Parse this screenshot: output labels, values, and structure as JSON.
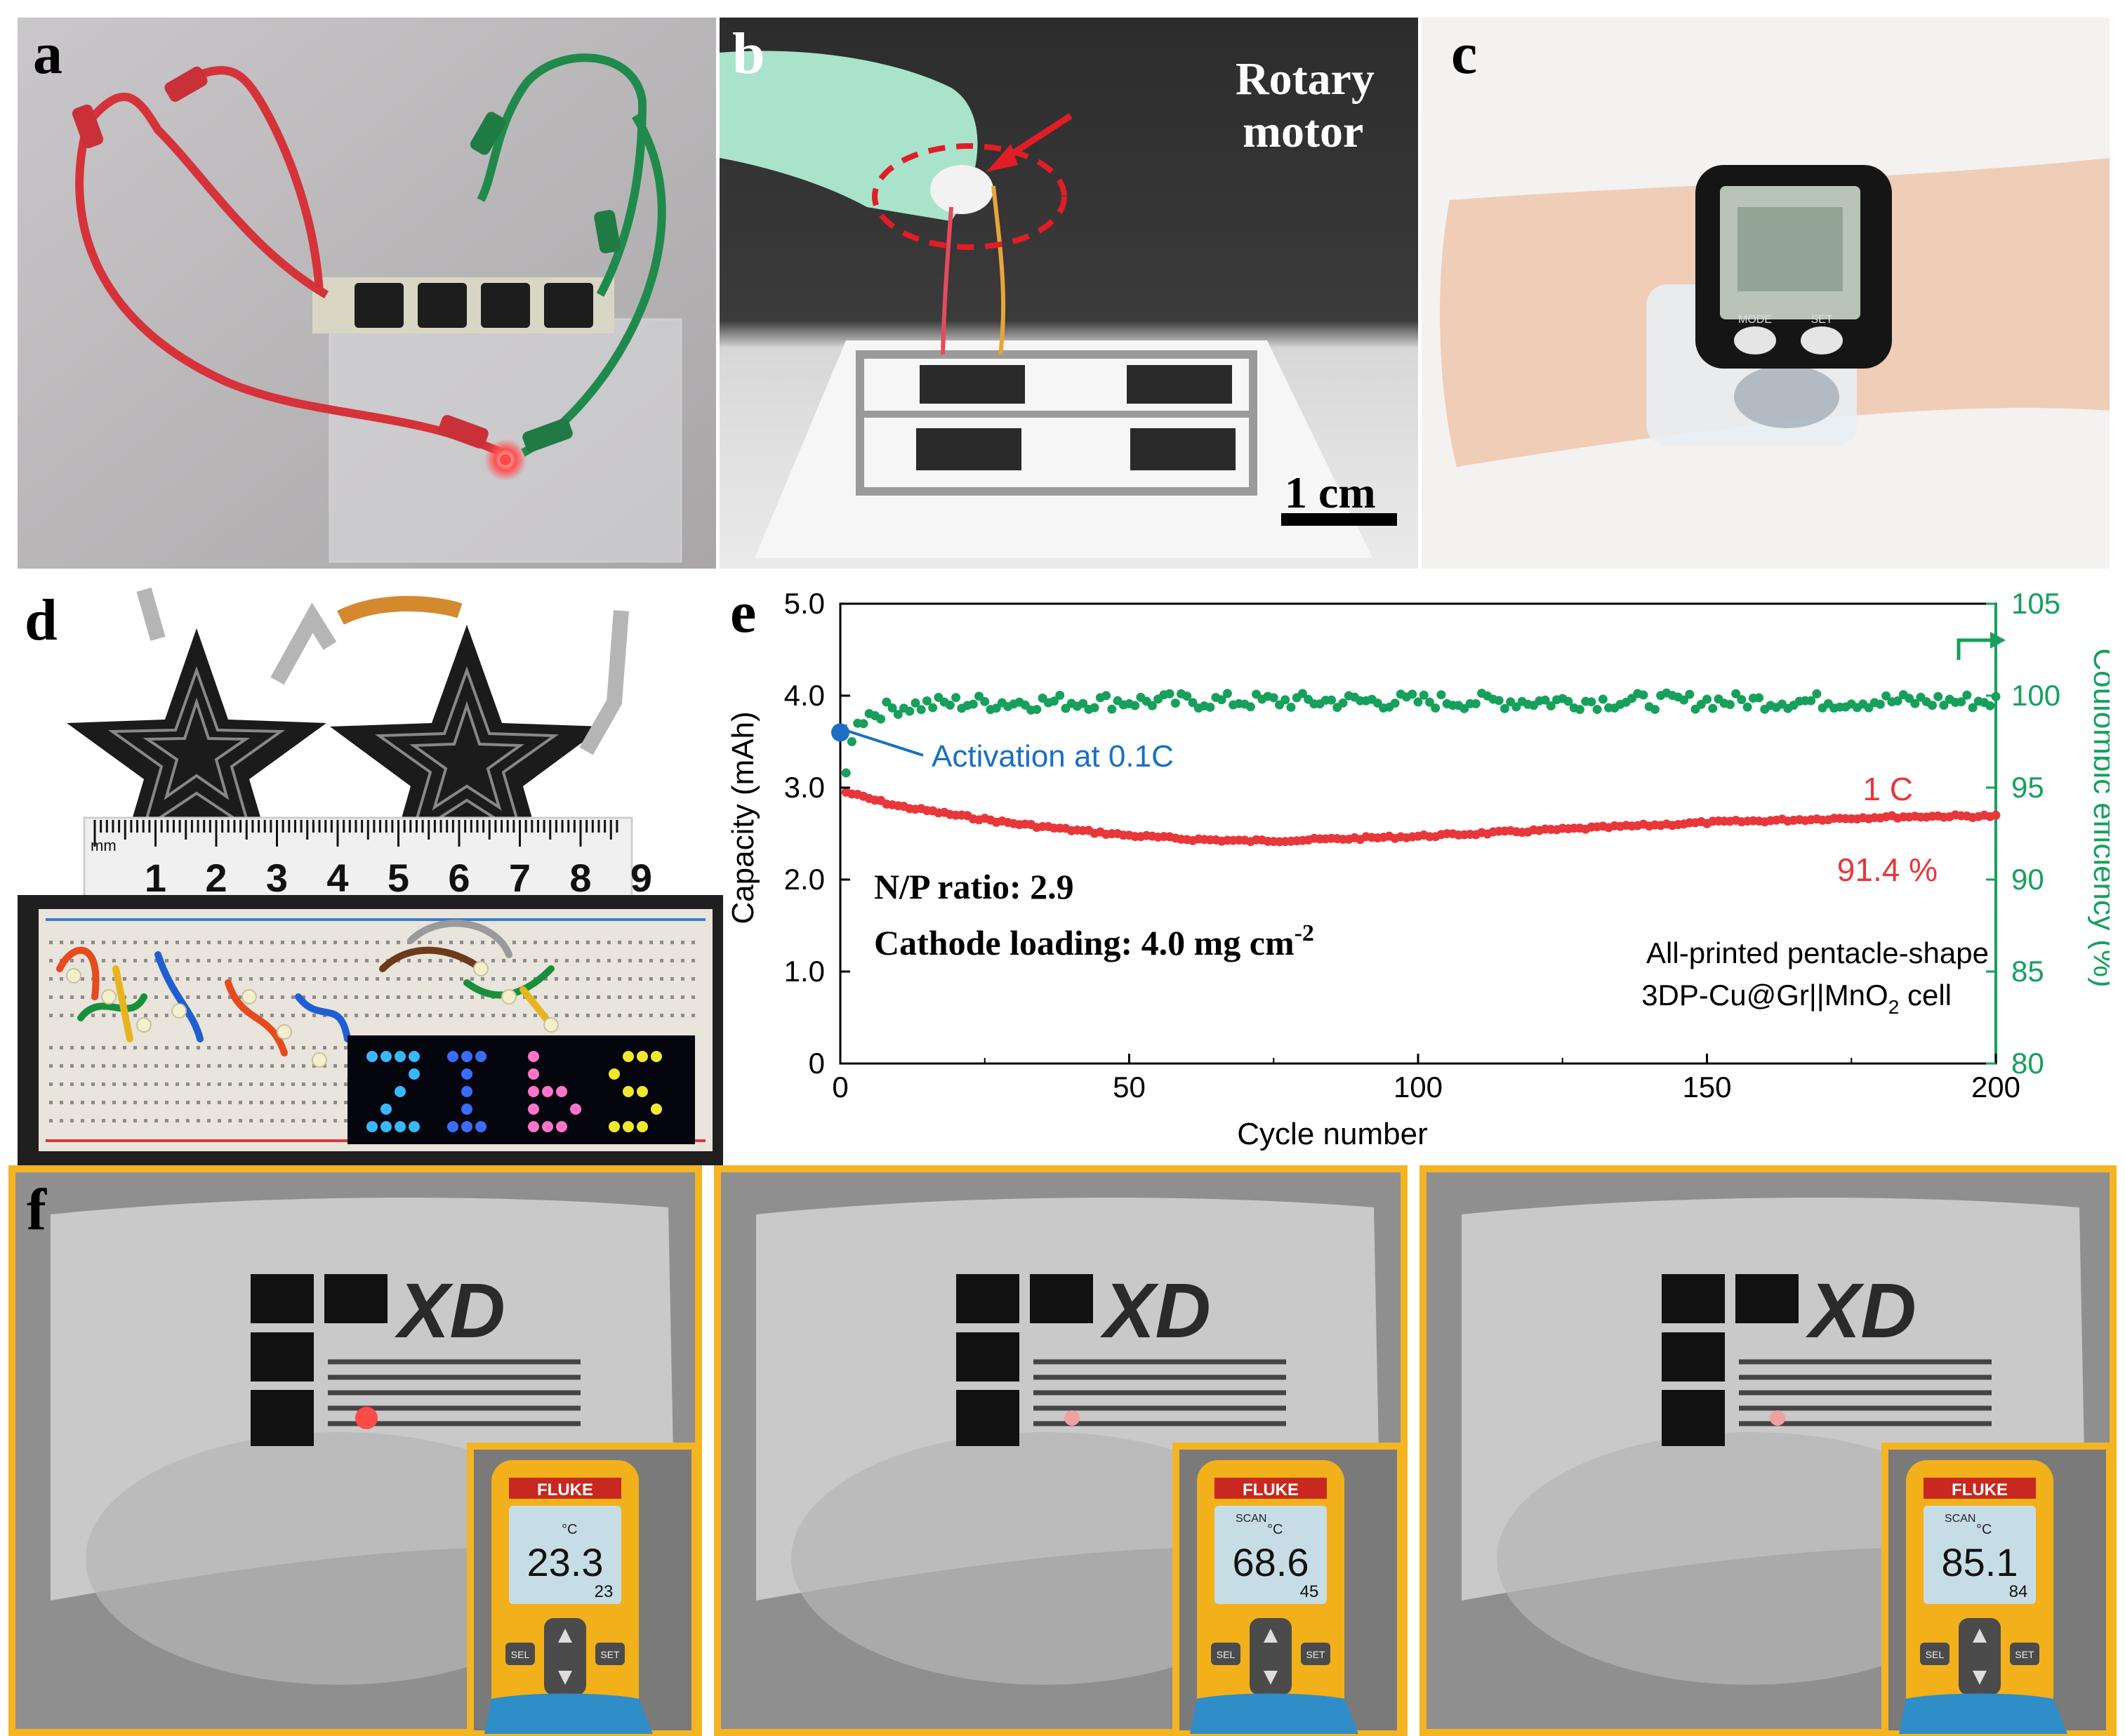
{
  "panels": {
    "a": {
      "label": "a"
    },
    "b": {
      "label": "b",
      "annotation_line1": "Rotary",
      "annotation_line2": "motor",
      "scale_bar": "1 cm"
    },
    "c": {
      "label": "c",
      "watch_buttons": [
        "MODE",
        "SET"
      ]
    },
    "d": {
      "label": "d",
      "ruler_unit": "mm",
      "ruler_numbers": [
        "1",
        "2",
        "3",
        "4",
        "5",
        "6",
        "7",
        "8",
        "9"
      ],
      "led_letters": [
        "Z",
        "I",
        "B",
        "S"
      ]
    },
    "e": {
      "label": "e"
    },
    "f": {
      "label": "f",
      "brand": "FLUKE",
      "unit": "°C",
      "mode": "SCAN",
      "readings": [
        {
          "main": "23.3",
          "min": "23"
        },
        {
          "main": "68.6",
          "min": "45"
        },
        {
          "main": "85.1",
          "min": "84"
        }
      ],
      "logo_text": "XD",
      "buttons": [
        "SEL",
        "SET"
      ]
    }
  },
  "colors": {
    "capacity": "#e8373a",
    "efficiency": "#16a05c",
    "activation": "#1a6fc4",
    "frame": "#f5b422"
  },
  "chart_data": {
    "type": "scatter",
    "title": "",
    "xlabel": "Cycle number",
    "ylabel_left": "Capacity (mAh)",
    "ylabel_right": "Coulombic efficiency (%)",
    "xlim": [
      0,
      200
    ],
    "ylim_left": [
      0,
      5.0
    ],
    "ylim_right": [
      80,
      105
    ],
    "xticks": [
      "0",
      "50",
      "100",
      "150",
      "200"
    ],
    "yticks_left": [
      "0",
      "1.0",
      "2.0",
      "3.0",
      "4.0",
      "5.0"
    ],
    "yticks_right": [
      "80",
      "85",
      "90",
      "95",
      "100",
      "105"
    ],
    "series": [
      {
        "name": "1 C",
        "axis": "left",
        "color": "#e8373a",
        "x": [
          1,
          5,
          10,
          20,
          30,
          40,
          50,
          60,
          70,
          80,
          90,
          100,
          110,
          120,
          130,
          140,
          150,
          160,
          170,
          180,
          190,
          200
        ],
        "y": [
          2.95,
          2.88,
          2.8,
          2.7,
          2.61,
          2.54,
          2.48,
          2.44,
          2.42,
          2.43,
          2.45,
          2.47,
          2.5,
          2.53,
          2.56,
          2.59,
          2.62,
          2.64,
          2.66,
          2.68,
          2.69,
          2.69
        ]
      },
      {
        "name": "",
        "axis": "right",
        "color": "#16a05c",
        "x": [
          1,
          2,
          3,
          5,
          10,
          20,
          50,
          100,
          150,
          200
        ],
        "y": [
          95.8,
          97.5,
          98.5,
          99.0,
          99.4,
          99.6,
          99.7,
          99.7,
          99.7,
          99.7
        ]
      }
    ],
    "activation_point": {
      "x": 0,
      "y": 3.6,
      "label": "Activation at 0.1C"
    },
    "annotations": {
      "rate": "1 C",
      "retention": "91.4 %",
      "np_ratio": "N/P ratio: 2.9",
      "loading_prefix": "Cathode loading: 4.0 mg cm",
      "loading_exp": "-2",
      "cell_line1": "All-printed pentacle-shape",
      "cell_line2_prefix": "3DP-Cu@Gr||MnO",
      "cell_line2_sub": "2",
      "cell_line2_suffix": " cell"
    },
    "grid": false
  }
}
